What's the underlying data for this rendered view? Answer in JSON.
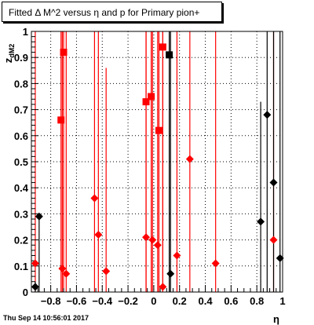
{
  "title": "Fitted Δ M^2 versus η and p for Primary pion+",
  "footer": "Thu Sep 14 10:56:01 2017",
  "chart_data": {
    "type": "scatter",
    "xlabel": "η",
    "ylabel": "z_dM2",
    "xlim": [
      -0.95,
      1.0
    ],
    "ylim": [
      0,
      1.0
    ],
    "grid": true,
    "x_ticks": [
      -0.8,
      -0.6,
      -0.4,
      -0.2,
      0,
      0.2,
      0.4,
      0.6,
      0.8,
      1
    ],
    "x_tick_labels": [
      "−0.8",
      "−0.6",
      "−0.4",
      "−0.2",
      "0",
      "0.2",
      "0.4",
      "0.6",
      "0.8",
      "1"
    ],
    "y_ticks": [
      0,
      0.1,
      0.2,
      0.3,
      0.4,
      0.5,
      0.6,
      0.7,
      0.8,
      0.9,
      1
    ],
    "y_tick_labels": [
      "0",
      "0.1",
      "0.2",
      "0.3",
      "0.4",
      "0.5",
      "0.6",
      "0.7",
      "0.8",
      "0.9",
      "1"
    ],
    "series": [
      {
        "marker": "square",
        "color": "#ff0000",
        "points": [
          {
            "x": -0.7,
            "y": 0.92,
            "ylo": 0.0,
            "yhi": 1.0
          },
          {
            "x": -0.72,
            "y": 0.66,
            "ylo": 0.0,
            "yhi": 1.0
          },
          {
            "x": -0.06,
            "y": 0.73,
            "ylo": 0.0,
            "yhi": 1.0
          },
          {
            "x": -0.02,
            "y": 0.75,
            "ylo": 0.0,
            "yhi": 1.0
          },
          {
            "x": 0.04,
            "y": 0.62,
            "ylo": 0.0,
            "yhi": 1.0
          },
          {
            "x": 0.07,
            "y": 0.94,
            "ylo": 0.0,
            "yhi": 1.0
          }
        ]
      },
      {
        "marker": "square",
        "color": "#000000",
        "points": [
          {
            "x": 0.12,
            "y": 0.91,
            "ylo": 0.0,
            "yhi": 1.0
          }
        ]
      },
      {
        "marker": "diamond",
        "color": "#ff0000",
        "points": [
          {
            "x": -0.92,
            "y": 0.11,
            "ylo": 0.0,
            "yhi": 1.0
          },
          {
            "x": -0.71,
            "y": 0.09,
            "ylo": 0.0,
            "yhi": 1.0
          },
          {
            "x": -0.68,
            "y": 0.07,
            "ylo": 0.0,
            "yhi": 1.0
          },
          {
            "x": -0.46,
            "y": 0.36,
            "ylo": 0.0,
            "yhi": 1.0
          },
          {
            "x": -0.43,
            "y": 0.22,
            "ylo": 0.0,
            "yhi": 1.0
          },
          {
            "x": -0.37,
            "y": 0.08,
            "ylo": 0.0,
            "yhi": 0.86
          },
          {
            "x": -0.06,
            "y": 0.21,
            "ylo": 0.0,
            "yhi": 1.0
          },
          {
            "x": -0.01,
            "y": 0.2,
            "ylo": 0.0,
            "yhi": 1.0
          },
          {
            "x": 0.03,
            "y": 0.18,
            "ylo": 0.0,
            "yhi": 1.0
          },
          {
            "x": 0.07,
            "y": 0.02,
            "ylo": 0.0,
            "yhi": 1.0
          },
          {
            "x": 0.18,
            "y": 0.14,
            "ylo": 0.0,
            "yhi": 1.0
          },
          {
            "x": 0.28,
            "y": 0.51,
            "ylo": 0.0,
            "yhi": 1.0
          },
          {
            "x": 0.48,
            "y": 0.11,
            "ylo": 0.0,
            "yhi": 1.0
          },
          {
            "x": 0.93,
            "y": 0.2,
            "ylo": 0.0,
            "yhi": 1.0
          }
        ]
      },
      {
        "marker": "diamond",
        "color": "#000000",
        "points": [
          {
            "x": -0.92,
            "y": 0.02,
            "ylo": 0.0,
            "yhi": 0.04
          },
          {
            "x": -0.89,
            "y": 0.29,
            "ylo": 0.0,
            "yhi": 0.3
          },
          {
            "x": 0.13,
            "y": 0.07,
            "ylo": 0.0,
            "yhi": 1.0
          },
          {
            "x": 0.83,
            "y": 0.27,
            "ylo": 0.0,
            "yhi": 0.73
          },
          {
            "x": 0.88,
            "y": 0.68,
            "ylo": 0.0,
            "yhi": 1.0
          },
          {
            "x": 0.93,
            "y": 0.42,
            "ylo": 0.0,
            "yhi": 1.0
          },
          {
            "x": 0.98,
            "y": 0.13,
            "ylo": 0.0,
            "yhi": 1.0
          }
        ]
      }
    ]
  }
}
